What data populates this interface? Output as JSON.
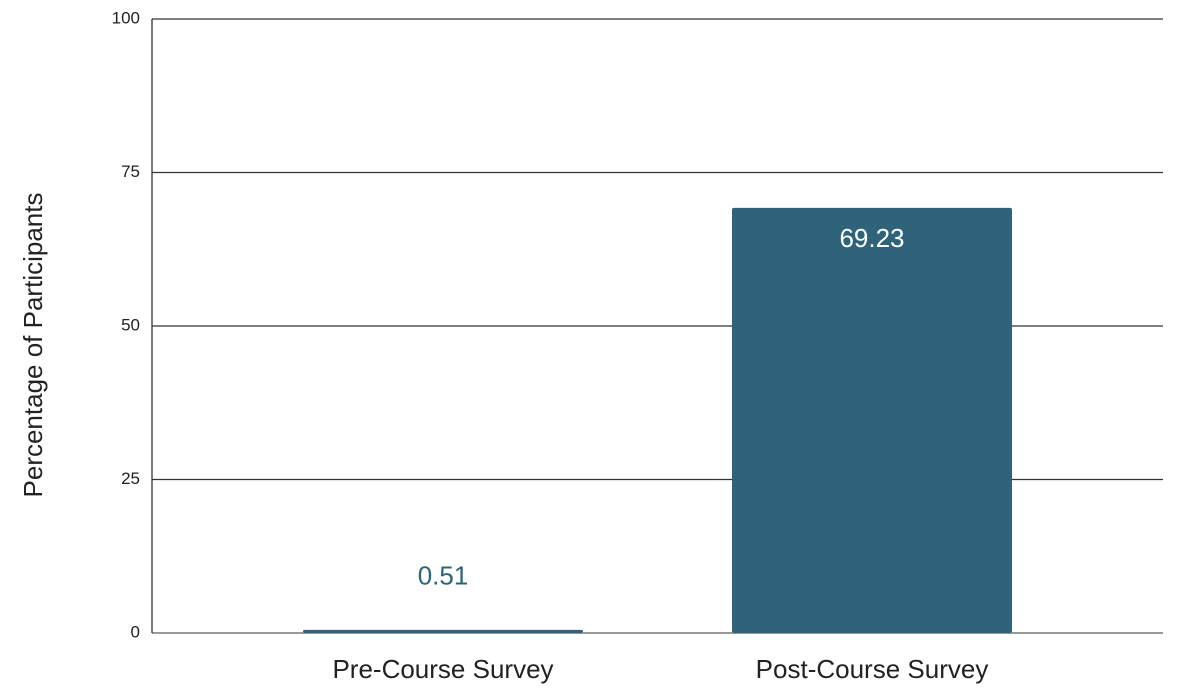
{
  "chart_data": {
    "type": "bar",
    "y_label": "Percentage of Participants",
    "categories": [
      "Pre-Course Survey",
      "Post-Course Survey"
    ],
    "values": [
      0.51,
      69.23
    ],
    "color": "#2e6379",
    "ylim": [
      0,
      100
    ],
    "yticks": [
      0,
      25,
      50,
      75,
      100
    ],
    "grid": true
  }
}
